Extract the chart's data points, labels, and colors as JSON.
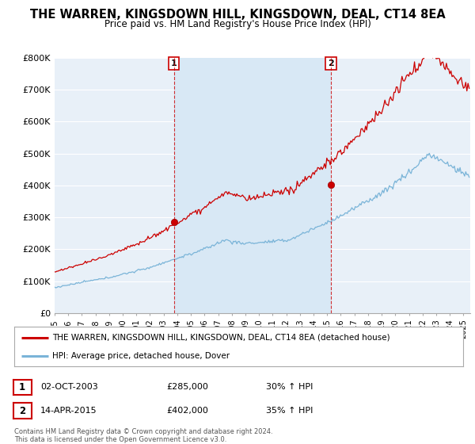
{
  "title": "THE WARREN, KINGSDOWN HILL, KINGSDOWN, DEAL, CT14 8EA",
  "subtitle": "Price paid vs. HM Land Registry's House Price Index (HPI)",
  "ylabel_ticks": [
    "£0",
    "£100K",
    "£200K",
    "£300K",
    "£400K",
    "£500K",
    "£600K",
    "£700K",
    "£800K"
  ],
  "ylim": [
    0,
    800000
  ],
  "xlim_start": 1995.0,
  "xlim_end": 2025.5,
  "sale1_year": 2003.75,
  "sale1_price": 285000,
  "sale2_year": 2015.28,
  "sale2_price": 402000,
  "legend_line1": "THE WARREN, KINGSDOWN HILL, KINGSDOWN, DEAL, CT14 8EA (detached house)",
  "legend_line2": "HPI: Average price, detached house, Dover",
  "table_row1": [
    "1",
    "02-OCT-2003",
    "£285,000",
    "30% ↑ HPI"
  ],
  "table_row2": [
    "2",
    "14-APR-2015",
    "£402,000",
    "35% ↑ HPI"
  ],
  "footnote1": "Contains HM Land Registry data © Crown copyright and database right 2024.",
  "footnote2": "This data is licensed under the Open Government Licence v3.0.",
  "hpi_color": "#7ab4d8",
  "price_color": "#cc0000",
  "shade_color": "#d8e8f5",
  "plot_bg_color": "#e8f0f8",
  "grid_color": "#ffffff"
}
